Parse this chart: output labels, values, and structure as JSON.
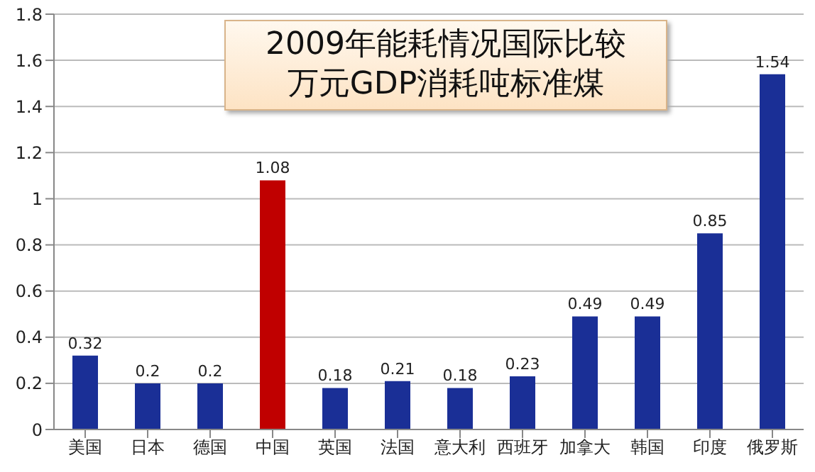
{
  "chart_data": {
    "type": "bar",
    "title": "2009年能耗情况国际比较",
    "subtitle": "万元GDP消耗吨标准煤",
    "categories": [
      "美国",
      "日本",
      "德国",
      "中国",
      "英国",
      "法国",
      "意大利",
      "西班牙",
      "加拿大",
      "韩国",
      "印度",
      "俄罗斯"
    ],
    "values": [
      0.32,
      0.2,
      0.2,
      1.08,
      0.18,
      0.21,
      0.18,
      0.23,
      0.49,
      0.49,
      0.85,
      1.54
    ],
    "colors": [
      "#1a2f96",
      "#1a2f96",
      "#1a2f96",
      "#c00000",
      "#1a2f96",
      "#1a2f96",
      "#1a2f96",
      "#1a2f96",
      "#1a2f96",
      "#1a2f96",
      "#1a2f96",
      "#1a2f96"
    ],
    "ylim": [
      0,
      1.8
    ],
    "yticks": [
      0,
      0.2,
      0.4,
      0.6,
      0.8,
      1,
      1.2,
      1.4,
      1.6,
      1.8
    ],
    "grid": "y",
    "data_labels": true
  }
}
